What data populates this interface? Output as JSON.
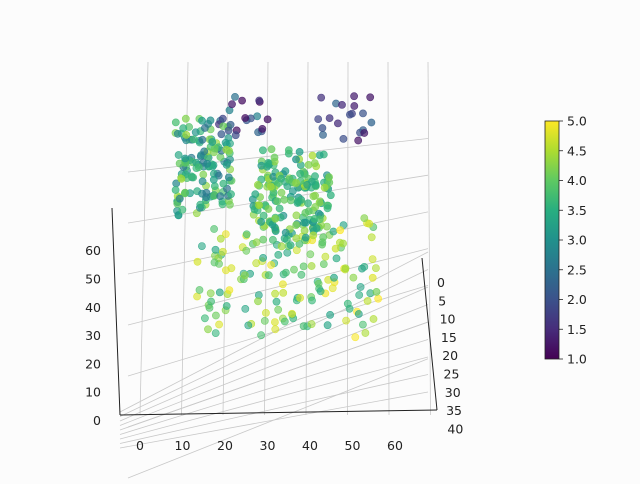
{
  "chart_data": {
    "type": "scatter",
    "projection": "3d",
    "title": "",
    "xlabel": "",
    "ylabel": "",
    "zlabel": "",
    "x_ticks": [
      "0",
      "10",
      "20",
      "30",
      "40",
      "50",
      "60"
    ],
    "y_ticks": [
      "0",
      "5",
      "10",
      "15",
      "20",
      "25",
      "30",
      "35",
      "40"
    ],
    "z_ticks": [
      "0",
      "10",
      "20",
      "30",
      "40",
      "50",
      "60"
    ],
    "xlim": [
      -5,
      68
    ],
    "ylim": [
      -2,
      42
    ],
    "zlim": [
      0,
      70
    ],
    "grid": true,
    "colorbar": {
      "colormap": "viridis",
      "ticks": [
        "1.0",
        "1.5",
        "2.0",
        "2.5",
        "3.0",
        "3.5",
        "4.0",
        "4.5",
        "5.0"
      ],
      "range": [
        1.0,
        5.0
      ]
    },
    "point_count": 520,
    "clusters": [
      {
        "x_range": [
          25,
          45
        ],
        "y_range": [
          0,
          15
        ],
        "z_range": [
          30,
          50
        ],
        "c_range": [
          3.0,
          4.5
        ],
        "count": 180
      },
      {
        "x_range": [
          5,
          20
        ],
        "y_range": [
          5,
          20
        ],
        "z_range": [
          40,
          60
        ],
        "c_range": [
          2.5,
          4.5
        ],
        "count": 140
      },
      {
        "x_range": [
          10,
          60
        ],
        "y_range": [
          15,
          35
        ],
        "z_range": [
          15,
          40
        ],
        "c_range": [
          3.3,
          5.0
        ],
        "count": 150
      },
      {
        "x_range": [
          40,
          55
        ],
        "y_range": [
          0,
          10
        ],
        "z_range": [
          55,
          68
        ],
        "c_range": [
          1.0,
          2.5
        ],
        "count": 25
      },
      {
        "x_range": [
          15,
          30
        ],
        "y_range": [
          0,
          10
        ],
        "z_range": [
          55,
          65
        ],
        "c_range": [
          1.0,
          2.8
        ],
        "count": 25
      }
    ]
  }
}
